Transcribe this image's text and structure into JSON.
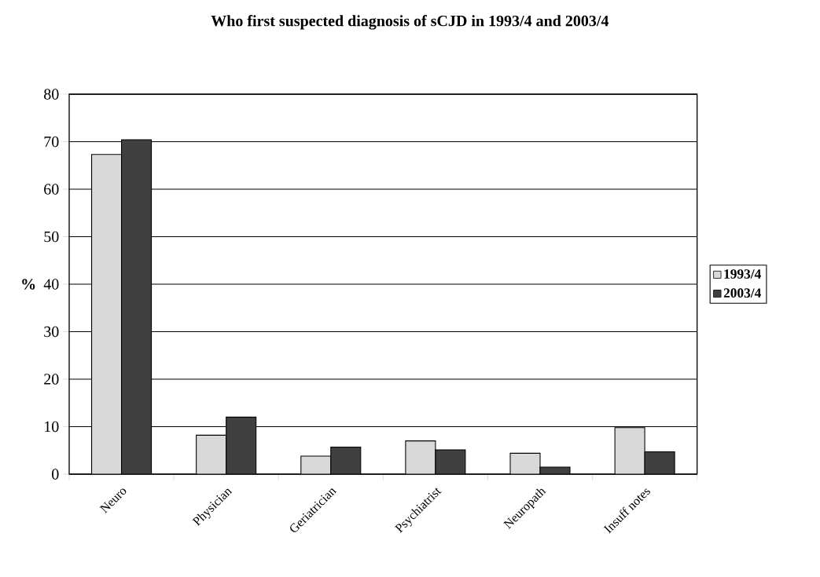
{
  "chart_data": {
    "type": "bar",
    "title": "Who first suspected diagnosis of sCJD in 1993/4 and 2003/4",
    "ylabel": "%",
    "categories": [
      "Neuro",
      "Physician",
      "Geriatrician",
      "Psychiatrist",
      "Neuropath",
      "Insuff notes"
    ],
    "series": [
      {
        "name": "1993/4",
        "color": "#d9d9d9",
        "values": [
          67.3,
          8.2,
          3.8,
          7.0,
          4.4,
          9.8
        ]
      },
      {
        "name": "2003/4",
        "color": "#404040",
        "values": [
          70.4,
          12.0,
          5.7,
          5.1,
          1.5,
          4.7
        ]
      }
    ],
    "ylim": [
      0,
      80
    ],
    "yticks": [
      0,
      10,
      20,
      30,
      40,
      50,
      60,
      70,
      80
    ],
    "grid": "y",
    "legend": "right"
  }
}
